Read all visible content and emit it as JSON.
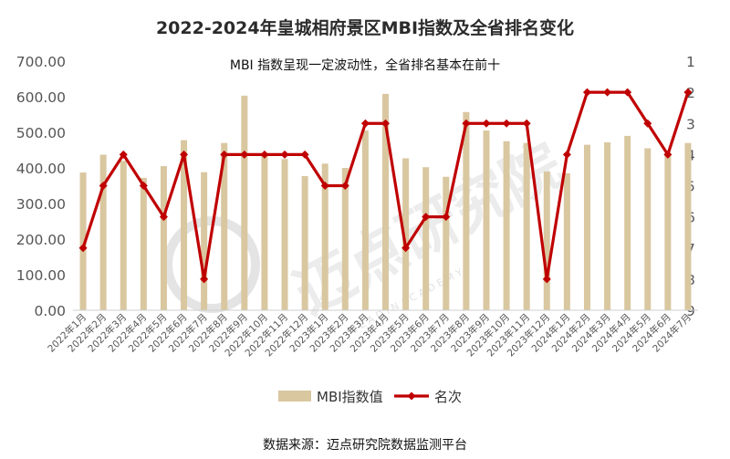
{
  "chart_data": {
    "type": "bar",
    "title": "2022-2024年皇城相府景区MBI指数及全省排名变化",
    "annotation": "MBI 指数呈现一定波动性，全省排名基本在前十",
    "categories": [
      "2022年1月",
      "2022年2月",
      "2022年3月",
      "2022年4月",
      "2022年5月",
      "2022年6月",
      "2022年7月",
      "2022年8月",
      "2022年9月",
      "2022年10月",
      "2022年11月",
      "2022年12月",
      "2023年1月",
      "2023年2月",
      "2023年3月",
      "2023年4月",
      "2023年5月",
      "2023年6月",
      "2023年7月",
      "2023年8月",
      "2023年9月",
      "2023年10月",
      "2023年11月",
      "2023年12月",
      "2024年1月",
      "2024年2月",
      "2024年3月",
      "2024年4月",
      "2024年5月",
      "2024年6月",
      "2024年7月"
    ],
    "series": [
      {
        "name": "MBI指数值",
        "type": "bar",
        "axis": "left",
        "color": "#d9c7a0",
        "values": [
          387,
          437,
          420,
          372,
          405,
          478,
          388,
          470,
          603,
          435,
          425,
          377,
          412,
          400,
          505,
          608,
          427,
          402,
          375,
          557,
          505,
          475,
          470,
          390,
          385,
          465,
          472,
          490,
          455,
          440,
          470
        ]
      },
      {
        "name": "名次",
        "type": "line",
        "axis": "right",
        "color": "#c00000",
        "values": [
          7,
          5,
          4,
          5,
          6,
          4,
          8,
          4,
          4,
          4,
          4,
          4,
          5,
          5,
          3,
          3,
          7,
          6,
          6,
          3,
          3,
          3,
          3,
          8,
          4,
          2,
          2,
          2,
          3,
          4,
          2
        ]
      }
    ],
    "left_axis": {
      "min": 0,
      "max": 700,
      "step": 100,
      "tick_labels": [
        "0.00",
        "100.00",
        "200.00",
        "300.00",
        "400.00",
        "500.00",
        "600.00",
        "700.00"
      ]
    },
    "right_axis": {
      "min": 1,
      "max": 9,
      "step": 1,
      "inverted": true,
      "tick_labels": [
        "1",
        "2",
        "3",
        "4",
        "5",
        "6",
        "7",
        "8",
        "9"
      ]
    },
    "legend": {
      "position": "bottom",
      "entries": [
        "MBI指数值",
        "名次"
      ]
    },
    "grid": false
  },
  "watermark": {
    "text": "迈点研究院",
    "subtext": "M E A D I N   A C A D E M Y"
  },
  "source": "数据来源：迈点研究院数据监测平台"
}
